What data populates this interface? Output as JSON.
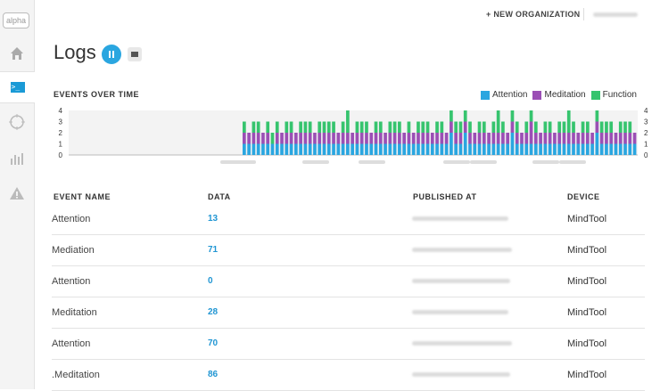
{
  "sidebar": {
    "badge": "alpha",
    "items": [
      {
        "icon": "home-icon"
      },
      {
        "icon": "terminal-icon",
        "active": true
      },
      {
        "icon": "crosshair-icon"
      },
      {
        "icon": "bar-chart-icon"
      },
      {
        "icon": "warning-icon"
      }
    ]
  },
  "topbar": {
    "new_org_label": "+ NEW ORGANIZATION"
  },
  "header": {
    "title": "Logs"
  },
  "chart_data": {
    "type": "bar",
    "title": "EVENTS OVER TIME",
    "ylim": [
      0,
      4
    ],
    "yticks": [
      "0",
      "1",
      "2",
      "3",
      "4"
    ],
    "series": [
      {
        "name": "Attention",
        "color": "#2aa6e0"
      },
      {
        "name": "Meditation",
        "color": "#9b4fb5"
      },
      {
        "name": "Function",
        "color": "#36c46e"
      }
    ],
    "stacks": [
      [
        1,
        1,
        1
      ],
      [
        1,
        1,
        0
      ],
      [
        1,
        1,
        1
      ],
      [
        1,
        1,
        1
      ],
      [
        1,
        1,
        0
      ],
      [
        1,
        1,
        1
      ],
      [
        1,
        0,
        1
      ],
      [
        1,
        1,
        1
      ],
      [
        1,
        1,
        0
      ],
      [
        1,
        1,
        1
      ],
      [
        1,
        1,
        1
      ],
      [
        1,
        1,
        0
      ],
      [
        1,
        1,
        1
      ],
      [
        1,
        1,
        1
      ],
      [
        1,
        1,
        1
      ],
      [
        1,
        1,
        0
      ],
      [
        1,
        1,
        1
      ],
      [
        1,
        1,
        1
      ],
      [
        1,
        1,
        1
      ],
      [
        1,
        1,
        1
      ],
      [
        1,
        1,
        0
      ],
      [
        1,
        1,
        1
      ],
      [
        1,
        1,
        2
      ],
      [
        1,
        1,
        0
      ],
      [
        1,
        1,
        1
      ],
      [
        1,
        1,
        1
      ],
      [
        1,
        1,
        1
      ],
      [
        1,
        1,
        0
      ],
      [
        1,
        1,
        1
      ],
      [
        1,
        1,
        1
      ],
      [
        1,
        1,
        0
      ],
      [
        1,
        1,
        1
      ],
      [
        1,
        1,
        1
      ],
      [
        1,
        1,
        1
      ],
      [
        1,
        1,
        0
      ],
      [
        1,
        1,
        1
      ],
      [
        1,
        1,
        0
      ],
      [
        1,
        1,
        1
      ],
      [
        1,
        1,
        1
      ],
      [
        1,
        1,
        1
      ],
      [
        1,
        1,
        0
      ],
      [
        1,
        1,
        1
      ],
      [
        1,
        1,
        1
      ],
      [
        1,
        1,
        0
      ],
      [
        2,
        1,
        1
      ],
      [
        1,
        1,
        1
      ],
      [
        1,
        1,
        1
      ],
      [
        2,
        1,
        1
      ],
      [
        1,
        1,
        1
      ],
      [
        1,
        1,
        0
      ],
      [
        1,
        1,
        1
      ],
      [
        1,
        1,
        1
      ],
      [
        1,
        1,
        0
      ],
      [
        1,
        1,
        1
      ],
      [
        1,
        1,
        2
      ],
      [
        1,
        1,
        1
      ],
      [
        1,
        1,
        0
      ],
      [
        2,
        1,
        1
      ],
      [
        1,
        1,
        1
      ],
      [
        1,
        1,
        0
      ],
      [
        1,
        1,
        1
      ],
      [
        1,
        2,
        1
      ],
      [
        1,
        1,
        1
      ],
      [
        1,
        1,
        0
      ],
      [
        1,
        1,
        1
      ],
      [
        1,
        1,
        1
      ],
      [
        1,
        1,
        0
      ],
      [
        1,
        1,
        1
      ],
      [
        1,
        1,
        1
      ],
      [
        1,
        1,
        2
      ],
      [
        1,
        1,
        1
      ],
      [
        1,
        1,
        0
      ],
      [
        1,
        1,
        1
      ],
      [
        1,
        1,
        1
      ],
      [
        1,
        1,
        0
      ],
      [
        2,
        1,
        1
      ],
      [
        1,
        1,
        1
      ],
      [
        1,
        1,
        1
      ],
      [
        1,
        1,
        1
      ],
      [
        1,
        1,
        0
      ],
      [
        1,
        1,
        1
      ],
      [
        1,
        1,
        1
      ],
      [
        1,
        1,
        1
      ],
      [
        1,
        1,
        0
      ]
    ]
  },
  "table": {
    "headers": {
      "name": "EVENT NAME",
      "data": "DATA",
      "published": "PUBLISHED AT",
      "device": "DEVICE"
    },
    "rows": [
      {
        "name": "Attention",
        "data": "13",
        "device": "MindTool"
      },
      {
        "name": "Mediation",
        "data": "71",
        "device": "MindTool"
      },
      {
        "name": "Attention",
        "data": "0",
        "device": "MindTool"
      },
      {
        "name": "Meditation",
        "data": "28",
        "device": "MindTool"
      },
      {
        "name": "Attention",
        "data": "70",
        "device": "MindTool"
      },
      {
        "name": ".Meditation",
        "data": "86",
        "device": "MindTool"
      }
    ]
  }
}
